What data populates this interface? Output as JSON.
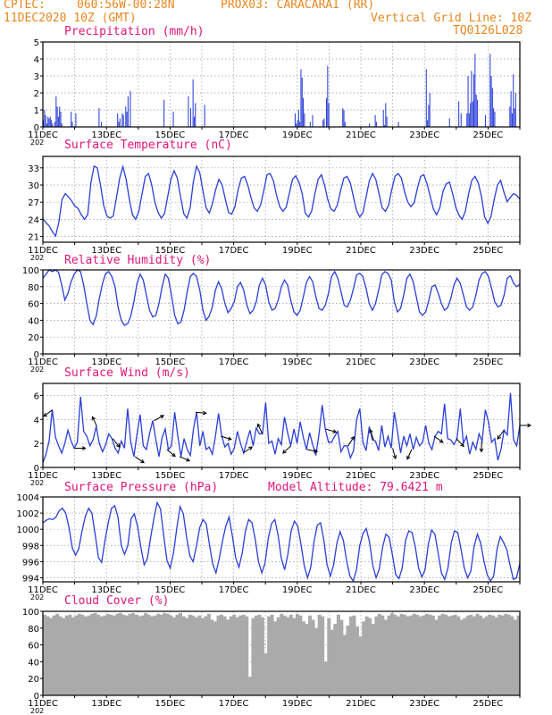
{
  "header": {
    "source": "CPTEC:",
    "location_coords": "060:56W-00:28N",
    "station": "PROX03: CARACARAI (RR)",
    "init_time": "11DEC2020 10Z (GMT)",
    "grid_line_note": "Vertical Grid Line: 10Z",
    "model_code": "TQ0126L028"
  },
  "x_axis": {
    "tick_labels": [
      "11DEC",
      "13DEC",
      "15DEC",
      "17DEC",
      "19DEC",
      "21DEC",
      "23DEC",
      "25DEC"
    ],
    "sub_label": "202"
  },
  "colors": {
    "header": "#e8861e",
    "title": "#e0157a",
    "series": "#2a3fd8",
    "cloud": "#aaaaaa",
    "grid": "#999999"
  },
  "chart_data": [
    {
      "id": "precip",
      "type": "bar",
      "title": "Precipitation (mm/h)",
      "ylim": [
        0,
        5
      ],
      "yticks": [
        0,
        1,
        2,
        3,
        4,
        5
      ],
      "values": [
        0.4,
        1.0,
        0.7,
        0.2,
        0.6,
        0.5,
        0.6,
        0.4,
        0.2,
        0,
        0.3,
        1.8,
        1.2,
        0.6,
        1.2,
        0.9,
        0.2,
        0,
        0,
        0,
        0,
        0,
        0,
        0,
        0.9,
        0.3,
        0,
        0,
        0.8,
        0,
        0,
        0,
        0,
        0,
        0,
        0,
        0,
        0,
        0,
        0,
        0,
        0,
        0,
        0,
        0,
        0,
        0,
        0,
        1.1,
        0,
        0.3,
        0,
        0,
        0,
        0,
        0,
        0,
        0,
        0,
        0,
        0,
        0,
        0,
        0,
        0.8,
        0.3,
        0.5,
        0,
        0.8,
        0.7,
        0,
        1.2,
        0.9,
        1.8,
        0,
        2.1,
        0,
        0,
        0,
        0,
        0,
        0,
        0,
        0,
        0,
        0,
        0,
        0,
        0,
        0,
        0,
        0,
        0,
        0,
        0,
        0,
        0,
        0,
        0,
        0,
        0,
        0,
        0,
        0,
        1.6,
        0,
        0,
        0,
        0,
        0,
        0,
        0,
        0.9,
        0,
        0,
        0,
        0,
        0,
        0,
        0,
        0,
        0,
        0,
        0,
        0,
        1.8,
        0,
        1.1,
        0,
        2.8,
        0.6,
        1.4,
        0,
        0,
        0,
        0,
        0,
        0,
        0,
        1.3,
        0,
        0,
        0,
        0,
        0,
        0,
        0,
        0,
        0,
        0,
        0,
        0,
        0,
        0,
        0,
        0,
        0,
        0,
        0,
        0,
        0,
        0,
        0,
        0,
        0,
        0,
        0,
        0,
        0,
        0,
        0,
        0,
        0,
        0,
        0,
        0,
        0,
        0,
        0,
        0,
        0,
        0,
        0,
        0,
        0,
        0,
        0,
        0,
        0,
        0,
        0,
        0,
        0,
        0,
        0,
        0,
        0,
        0,
        0,
        0,
        0,
        0,
        0,
        0,
        0,
        0,
        0,
        0,
        0,
        0,
        0,
        0,
        0,
        0,
        0,
        0,
        0,
        0.8,
        0.2,
        0.4,
        1.0,
        0.3,
        3.4,
        2.9,
        1.7,
        0.8,
        0,
        0,
        0,
        0,
        0.3,
        0,
        0.7,
        0,
        0,
        0,
        0,
        0,
        0,
        0,
        0,
        0.4,
        0.5,
        0,
        1.7,
        3.6,
        1.4,
        0,
        0,
        0,
        0,
        0,
        0,
        0,
        0,
        0,
        0,
        0,
        1.1,
        1.0,
        0.3,
        0,
        0,
        0,
        0,
        0,
        0,
        0,
        0,
        0,
        0,
        0,
        0,
        0,
        0,
        0,
        0,
        0,
        0,
        0,
        0,
        0.2,
        0,
        0,
        0,
        0,
        0.7,
        0.3,
        0,
        0,
        0,
        0,
        0,
        1.0,
        0.1,
        1.4,
        0.6,
        0,
        0,
        0,
        0,
        0,
        0,
        0,
        0,
        0,
        0.3,
        0,
        0,
        0,
        0,
        0,
        0,
        0,
        0,
        0,
        0,
        0,
        0,
        0,
        0,
        0,
        0,
        0,
        0,
        0,
        0,
        0,
        0,
        0,
        3.4,
        0.4,
        1.3,
        2.0,
        0,
        0,
        0,
        0,
        0,
        0,
        0,
        0,
        0,
        0,
        0,
        0,
        0,
        0,
        0,
        0,
        0.5,
        0,
        0,
        0,
        0,
        0,
        0,
        0,
        1.5,
        0,
        0.8,
        0,
        0,
        0,
        0,
        0.8,
        3.0,
        0.8,
        1.4,
        3.3,
        1.5,
        3.1,
        4.3,
        1.9,
        1.6,
        0,
        0,
        0,
        0,
        0,
        0,
        0.7,
        0,
        0,
        0,
        4.3,
        3.0,
        2.3,
        1.1,
        0.9,
        0,
        0,
        0,
        0,
        0,
        0,
        0,
        0,
        0,
        0,
        0,
        0,
        1.2,
        2.1,
        0.8,
        3.1,
        1.1,
        2.0,
        0,
        0,
        0
      ]
    },
    {
      "id": "temperature",
      "type": "line",
      "title": "Surface Temperature (nC)",
      "ylim": [
        20,
        35
      ],
      "yticks": [
        21,
        24,
        27,
        30,
        33
      ],
      "values": [
        24.1,
        23.4,
        22.8,
        21.8,
        21.1,
        23.5,
        27.5,
        28.5,
        27.9,
        27.2,
        26.3,
        25.9,
        24.8,
        24.0,
        24.8,
        30.4,
        33.3,
        33.0,
        30.0,
        26.4,
        24.6,
        24.2,
        24.6,
        27.8,
        31.2,
        33.2,
        31.0,
        27.5,
        24.8,
        24.0,
        25.4,
        28.5,
        31.5,
        32.0,
        30.0,
        27.0,
        25.2,
        24.2,
        25.0,
        28.0,
        31.0,
        32.5,
        31.2,
        28.0,
        25.0,
        24.2,
        26.0,
        30.5,
        33.3,
        32.2,
        29.0,
        26.0,
        25.1,
        26.8,
        29.2,
        31.0,
        30.0,
        27.5,
        25.2,
        24.9,
        26.2,
        29.2,
        31.2,
        31.5,
        30.0,
        27.8,
        26.0,
        25.4,
        26.5,
        29.0,
        31.8,
        32.0,
        30.8,
        28.2,
        26.2,
        25.4,
        26.1,
        28.6,
        31.0,
        31.6,
        30.5,
        28.5,
        25.0,
        24.4,
        25.5,
        28.5,
        31.0,
        31.8,
        30.0,
        27.4,
        25.8,
        25.4,
        26.5,
        29.0,
        31.2,
        31.5,
        30.4,
        28.0,
        25.5,
        24.4,
        25.2,
        28.0,
        30.8,
        32.0,
        31.0,
        28.5,
        26.0,
        25.4,
        26.5,
        29.2,
        31.5,
        32.0,
        31.2,
        28.8,
        27.0,
        26.2,
        26.9,
        29.4,
        31.5,
        31.8,
        30.2,
        28.0,
        25.8,
        24.8,
        26.0,
        28.9,
        30.2,
        30.5,
        28.5,
        26.1,
        24.7,
        24.0,
        25.5,
        28.5,
        30.8,
        31.5,
        30.4,
        28.0,
        24.4,
        23.3,
        24.5,
        27.5,
        30.0,
        30.8,
        28.8,
        27.1,
        27.8,
        28.5,
        28.2,
        27.5
      ]
    },
    {
      "id": "humidity",
      "type": "line",
      "title": "Relative Humidity (%)",
      "ylim": [
        0,
        100
      ],
      "yticks": [
        0,
        20,
        40,
        60,
        80,
        100
      ],
      "values": [
        90,
        95,
        100,
        98,
        100,
        97,
        82,
        64,
        72,
        86,
        95,
        100,
        98,
        82,
        60,
        40,
        35,
        45,
        66,
        84,
        96,
        98,
        92,
        80,
        55,
        40,
        34,
        36,
        45,
        62,
        84,
        95,
        88,
        70,
        52,
        44,
        46,
        60,
        80,
        95,
        90,
        70,
        46,
        36,
        38,
        52,
        74,
        92,
        96,
        92,
        76,
        52,
        40,
        45,
        56,
        76,
        86,
        77,
        60,
        49,
        54,
        62,
        80,
        85,
        76,
        58,
        48,
        52,
        62,
        82,
        90,
        82,
        62,
        52,
        54,
        64,
        80,
        88,
        82,
        64,
        50,
        46,
        52,
        68,
        85,
        92,
        86,
        68,
        54,
        52,
        58,
        72,
        92,
        98,
        90,
        74,
        58,
        56,
        64,
        78,
        94,
        96,
        92,
        78,
        60,
        52,
        60,
        76,
        94,
        98,
        96,
        88,
        62,
        50,
        54,
        70,
        90,
        95,
        86,
        68,
        50,
        46,
        50,
        64,
        80,
        82,
        72,
        60,
        52,
        55,
        66,
        82,
        90,
        84,
        70,
        56,
        52,
        56,
        70,
        88,
        96,
        98,
        92,
        78,
        62,
        56,
        58,
        70,
        90,
        93,
        84,
        80,
        83
      ]
    },
    {
      "id": "wind",
      "type": "line",
      "title": "Surface Wind (m/s)",
      "ylim": [
        0,
        7
      ],
      "yticks": [
        0,
        2,
        4,
        6
      ],
      "values": [
        0.4,
        1.1,
        2.2,
        4.8,
        2.5,
        1.8,
        1.2,
        2.0,
        3.1,
        2.2,
        1.6,
        2.1,
        5.9,
        3.0,
        2.6,
        1.8,
        2.3,
        3.4,
        2.0,
        1.3,
        1.9,
        2.8,
        2.4,
        1.6,
        1.2,
        2.2,
        1.6,
        4.9,
        2.1,
        0.9,
        2.8,
        4.4,
        1.8,
        1.5,
        2.8,
        3.9,
        2.3,
        0.9,
        2.5,
        3.2,
        1.5,
        1.8,
        4.6,
        2.6,
        0.9,
        2.4,
        1.5,
        1.0,
        3.2,
        4.6,
        1.8,
        3.0,
        1.5,
        1.7,
        1.1,
        2.6,
        4.5,
        2.6,
        1.7,
        2.0,
        1.1,
        1.6,
        3.0,
        2.0,
        1.2,
        2.2,
        3.1,
        1.8,
        3.3,
        2.8,
        2.8,
        5.4,
        2.0,
        2.2,
        1.1,
        2.4,
        1.9,
        4.2,
        2.9,
        1.8,
        3.2,
        2.0,
        3.8,
        2.5,
        1.5,
        2.9,
        1.9,
        1.0,
        2.8,
        5.2,
        3.2,
        2.1,
        2.1,
        2.6,
        3.0,
        1.3,
        1.8,
        1.8,
        0.8,
        1.4,
        4.0,
        4.9,
        2.1,
        1.4,
        3.4,
        2.3,
        2.2,
        1.4,
        3.5,
        1.7,
        2.6,
        1.6,
        4.6,
        3.0,
        1.2,
        2.6,
        1.8,
        2.8,
        1.5,
        2.5,
        1.8,
        2.1,
        3.5,
        2.0,
        1.5,
        2.6,
        3.0,
        2.8,
        5.3,
        2.4,
        2.3,
        1.9,
        2.4,
        4.9,
        2.0,
        2.6,
        1.1,
        2.1,
        1.5,
        2.8,
        2.2,
        4.8,
        3.8,
        2.1,
        2.4,
        0.6,
        1.5,
        3.1,
        2.7,
        6.2,
        2.3,
        1.8,
        3.5
      ]
    },
    {
      "id": "pressure",
      "type": "line",
      "title": "Surface Pressure (hPa)",
      "annotation": "Model Altitude: 79.6421 m",
      "ylim": [
        993.5,
        1004
      ],
      "yticks": [
        994,
        996,
        998,
        1000,
        1002,
        1004
      ],
      "values": [
        1000.8,
        1001.1,
        1001.3,
        1001.2,
        1001.5,
        1002.3,
        1002.6,
        1002.0,
        1000.2,
        997.7,
        996.8,
        997.6,
        999.8,
        1001.6,
        1002.6,
        1002.0,
        999.4,
        996.5,
        995.9,
        998.6,
        1000.8,
        1002.6,
        1002.9,
        1001.5,
        998.0,
        996.9,
        998.0,
        1001.3,
        1001.9,
        1000.3,
        997.8,
        995.6,
        996.4,
        999.0,
        1001.4,
        1003.3,
        1002.5,
        999.2,
        996.1,
        995.2,
        997.1,
        1000.2,
        1002.8,
        1001.9,
        999.0,
        996.7,
        996.0,
        997.9,
        1000.2,
        1001.2,
        1000.7,
        998.1,
        995.7,
        994.6,
        996.4,
        998.6,
        1000.4,
        1001.5,
        999.2,
        996.5,
        995.3,
        997.0,
        999.8,
        1001.2,
        1000.8,
        998.8,
        996.0,
        994.6,
        995.8,
        998.9,
        1000.7,
        1001.2,
        999.3,
        996.4,
        995.0,
        996.9,
        999.8,
        1001.0,
        1000.4,
        998.2,
        995.5,
        994.0,
        995.3,
        998.5,
        1000.5,
        1000.8,
        998.7,
        995.6,
        994.2,
        995.6,
        998.3,
        999.7,
        998.6,
        996.0,
        994.2,
        993.6,
        995.0,
        998.0,
        999.5,
        1000.1,
        998.4,
        995.5,
        994.0,
        995.1,
        997.8,
        999.4,
        999.0,
        996.8,
        994.4,
        993.9,
        995.2,
        998.6,
        999.8,
        999.6,
        997.8,
        995.2,
        994.1,
        995.0,
        998.2,
        999.9,
        999.4,
        997.0,
        994.6,
        993.8,
        995.2,
        998.3,
        999.8,
        999.6,
        997.5,
        995.2,
        994.0,
        994.8,
        997.9,
        999.4,
        998.3,
        996.1,
        994.4,
        993.6,
        994.2,
        997.5,
        999.1,
        998.4,
        997.5,
        995.6,
        993.8,
        994.0,
        995.8
      ]
    },
    {
      "id": "cloud",
      "type": "area",
      "title": "Cloud Cover (%)",
      "ylim": [
        0,
        100
      ],
      "yticks": [
        0,
        20,
        40,
        60,
        80,
        100
      ],
      "values": [
        96,
        94,
        92,
        95,
        97,
        94,
        92,
        95,
        96,
        93,
        95,
        97,
        96,
        94,
        95,
        97,
        98,
        96,
        94,
        95,
        97,
        96,
        95,
        97,
        98,
        96,
        95,
        97,
        98,
        96,
        94,
        95,
        98,
        96,
        94,
        95,
        97,
        96,
        98,
        97,
        95,
        93,
        96,
        98,
        94,
        92,
        96,
        95,
        93,
        95,
        92,
        94,
        97,
        90,
        88,
        95,
        96,
        94,
        90,
        94,
        96,
        93,
        95,
        96,
        94,
        22,
        92,
        95,
        96,
        93,
        50,
        94,
        96,
        88,
        93,
        97,
        95,
        93,
        96,
        92,
        97,
        95,
        88,
        85,
        95,
        90,
        80,
        96,
        94,
        40,
        92,
        78,
        85,
        96,
        90,
        72,
        83,
        94,
        95,
        82,
        70,
        88,
        94,
        92,
        85,
        94,
        97,
        95,
        90,
        95,
        98,
        96,
        94,
        97,
        96,
        94,
        95,
        97,
        96,
        94,
        95,
        97,
        96,
        95,
        90,
        95,
        97,
        96,
        94,
        95,
        96,
        94,
        90,
        92,
        95,
        96,
        94,
        97,
        95,
        92,
        94,
        96,
        95,
        93,
        96,
        95,
        97,
        96,
        94,
        90,
        95
      ]
    }
  ]
}
